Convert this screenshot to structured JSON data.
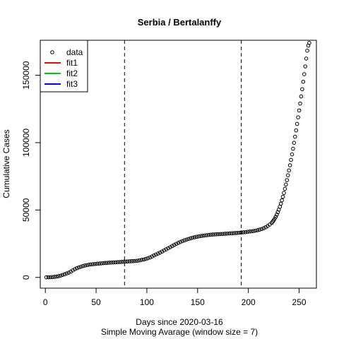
{
  "chart_data": {
    "type": "scatter",
    "title": "Serbia / Bertalanffy",
    "xlabel": "Days since 2020-03-16",
    "xlabel_sub": "Simple Moving Avarage (window size = 7)",
    "ylabel": "Cumulative Cases",
    "xlim": [
      -5,
      267
    ],
    "ylim": [
      -8000,
      176000
    ],
    "x_ticks": [
      0,
      50,
      100,
      150,
      200,
      250
    ],
    "y_ticks": [
      0,
      50000,
      100000,
      150000
    ],
    "vlines": [
      78,
      193
    ],
    "legend": {
      "position": "top-left",
      "entries": [
        {
          "label": "data",
          "marker": "circle",
          "color": "#000000"
        },
        {
          "label": "fit1",
          "marker": "line",
          "color": "#ff0000"
        },
        {
          "label": "fit2",
          "marker": "line",
          "color": "#00cd00"
        },
        {
          "label": "fit3",
          "marker": "line",
          "color": "#0000ff"
        }
      ]
    },
    "series": [
      {
        "name": "data",
        "x": [
          1,
          3,
          5,
          7,
          9,
          11,
          13,
          15,
          17,
          19,
          21,
          23,
          25,
          27,
          29,
          31,
          33,
          35,
          37,
          39,
          41,
          43,
          45,
          47,
          49,
          51,
          53,
          55,
          57,
          59,
          61,
          63,
          65,
          67,
          69,
          71,
          73,
          75,
          77,
          79,
          81,
          83,
          85,
          87,
          89,
          91,
          93,
          95,
          97,
          99,
          101,
          103,
          105,
          107,
          109,
          111,
          113,
          115,
          117,
          119,
          121,
          123,
          125,
          127,
          129,
          131,
          133,
          135,
          137,
          139,
          141,
          143,
          145,
          147,
          149,
          151,
          153,
          155,
          157,
          159,
          161,
          163,
          165,
          167,
          169,
          171,
          173,
          175,
          177,
          179,
          181,
          183,
          185,
          187,
          189,
          191,
          193,
          195,
          197,
          199,
          201,
          203,
          205,
          207,
          209,
          211,
          213,
          215,
          217,
          219,
          221,
          223,
          224,
          225,
          226,
          227,
          228,
          229,
          230,
          231,
          232,
          233,
          234,
          235,
          236,
          237,
          238,
          239,
          240,
          241,
          242,
          243,
          244,
          245,
          246,
          247,
          248,
          249,
          250,
          251,
          252,
          253,
          254,
          255,
          256,
          257,
          258,
          259,
          260
        ],
        "y": [
          50,
          80,
          120,
          200,
          400,
          600,
          900,
          1300,
          1800,
          2300,
          2900,
          3500,
          4200,
          5200,
          6100,
          6800,
          7400,
          7900,
          8400,
          8800,
          9100,
          9400,
          9600,
          9800,
          9950,
          10100,
          10250,
          10400,
          10550,
          10700,
          10800,
          10900,
          11000,
          11100,
          11200,
          11300,
          11400,
          11500,
          11600,
          11700,
          11800,
          11900,
          12000,
          12100,
          12200,
          12400,
          12700,
          13000,
          13300,
          13700,
          14200,
          14800,
          15500,
          16300,
          17000,
          17700,
          18400,
          19200,
          20000,
          20800,
          21600,
          22400,
          23300,
          24100,
          24900,
          25600,
          26300,
          26900,
          27500,
          28000,
          28500,
          29000,
          29400,
          29800,
          30100,
          30400,
          30700,
          30900,
          31100,
          31300,
          31500,
          31700,
          31800,
          31900,
          32000,
          32100,
          32200,
          32300,
          32400,
          32500,
          32600,
          32700,
          32800,
          32900,
          33000,
          33150,
          33300,
          33450,
          33600,
          33800,
          34000,
          34200,
          34400,
          34700,
          35000,
          35400,
          35900,
          36500,
          37200,
          38100,
          39200,
          40500,
          41400,
          42400,
          43600,
          45000,
          46600,
          48400,
          50300,
          52400,
          54700,
          57200,
          59800,
          62700,
          65700,
          68900,
          72200,
          75800,
          79400,
          83200,
          87200,
          91300,
          95500,
          99900,
          104400,
          109100,
          113900,
          118800,
          123900,
          129000,
          134300,
          139700,
          145200,
          150800,
          156600,
          162400,
          168300,
          172000,
          174000
        ]
      }
    ]
  }
}
